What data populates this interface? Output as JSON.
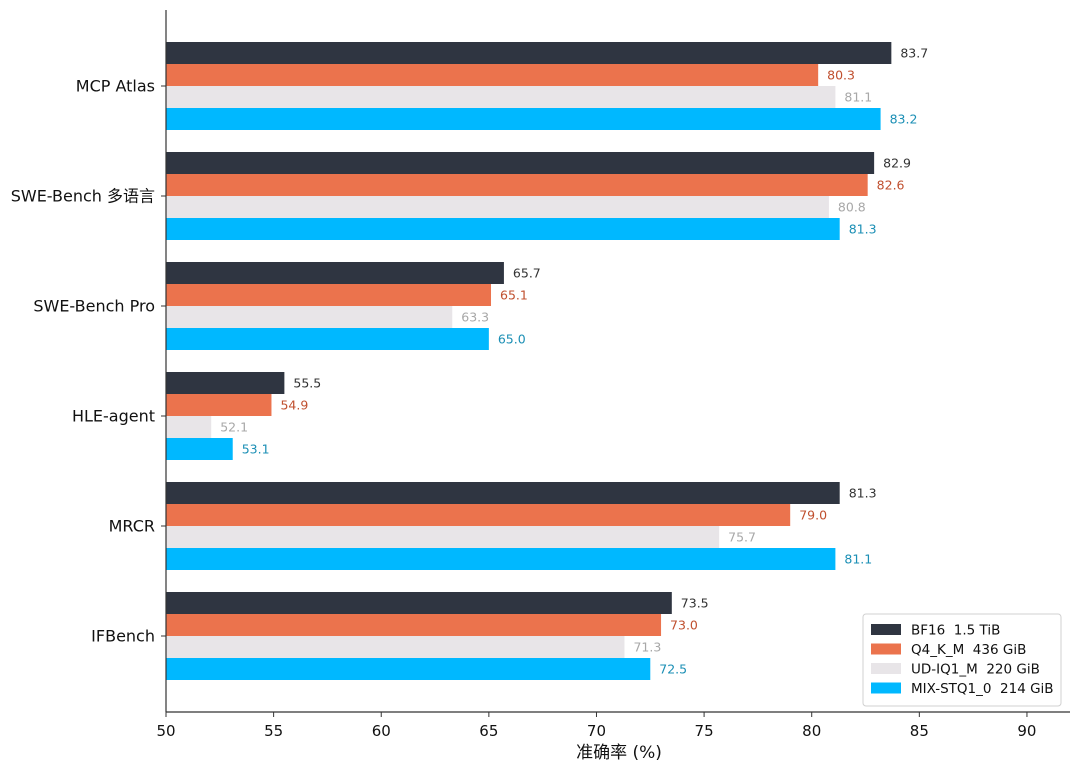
{
  "chart_data": {
    "type": "bar",
    "orientation": "horizontal",
    "categories": [
      "MCP Atlas",
      "SWE-Bench 多语言",
      "SWE-Bench Pro",
      "HLE-agent",
      "MRCR",
      "IFBench"
    ],
    "series": [
      {
        "name": "BF16  1.5 TiB",
        "color": "#2f3541",
        "label_color": "#333333",
        "values": [
          83.7,
          82.9,
          65.7,
          55.5,
          81.3,
          73.5
        ]
      },
      {
        "name": "Q4_K_M  436 GiB",
        "color": "#eb734d",
        "label_color": "#c0502f",
        "values": [
          80.3,
          82.6,
          65.1,
          54.9,
          79.0,
          73.0
        ]
      },
      {
        "name": "UD-IQ1_M  220 GiB",
        "color": "#e8e5e8",
        "label_color": "#a8a8a8",
        "values": [
          81.1,
          80.8,
          63.3,
          52.1,
          75.7,
          71.3
        ]
      },
      {
        "name": "MIX-STQ1_0  214 GiB",
        "color": "#00b8ff",
        "label_color": "#1b8fb5",
        "values": [
          83.2,
          81.3,
          65.0,
          53.1,
          81.1,
          72.5
        ]
      }
    ],
    "xlabel": "准确率 (%)",
    "ylabel": "",
    "title": "",
    "xlim": [
      50,
      92
    ],
    "xticks": [
      50,
      55,
      60,
      65,
      70,
      75,
      80,
      85,
      90
    ],
    "grid": false,
    "legend_position": "lower-right"
  }
}
